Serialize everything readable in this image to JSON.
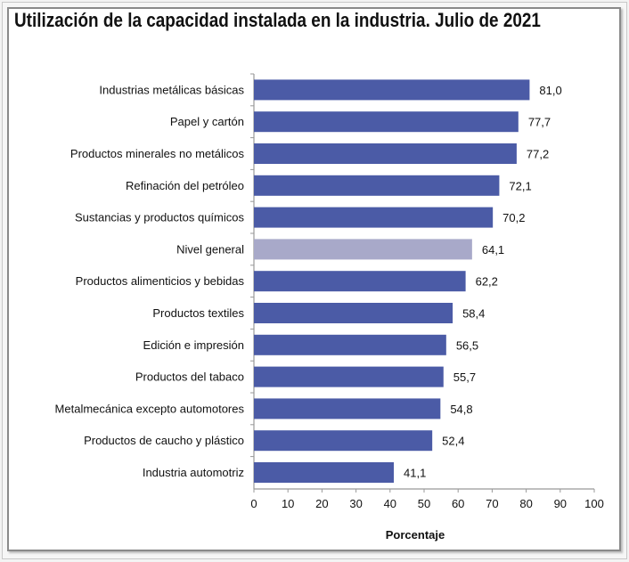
{
  "chart_data": {
    "type": "bar",
    "orientation": "horizontal",
    "title": "Utilización de la capacidad instalada en la industria. Julio de 2021",
    "xlabel": "Porcentaje",
    "ylabel": "",
    "xlim": [
      0,
      100
    ],
    "xticks": [
      "0",
      "10",
      "20",
      "30",
      "40",
      "50",
      "60",
      "70",
      "80",
      "90",
      "100"
    ],
    "grid": false,
    "categories": [
      "Industrias metálicas básicas",
      "Papel y cartón",
      "Productos minerales no metálicos",
      "Refinación del petróleo",
      "Sustancias y productos químicos",
      "Nivel general",
      "Productos alimenticios y bebidas",
      "Productos textiles",
      "Edición e impresión",
      "Productos del tabaco",
      "Metalmecánica excepto automotores",
      "Productos de caucho y plástico",
      "Industria automotriz"
    ],
    "values": [
      81.0,
      77.7,
      77.2,
      72.1,
      70.2,
      64.1,
      62.2,
      58.4,
      56.5,
      55.7,
      54.8,
      52.4,
      41.1
    ],
    "labels": [
      "81,0",
      "77,7",
      "77,2",
      "72,1",
      "70,2",
      "64,1",
      "62,2",
      "58,4",
      "56,5",
      "55,7",
      "54,8",
      "52,4",
      "41,1"
    ],
    "colors": {
      "bar": "#4b5ba6",
      "highlight": "#a8a9c9",
      "highlight_category": "Nivel general"
    }
  }
}
